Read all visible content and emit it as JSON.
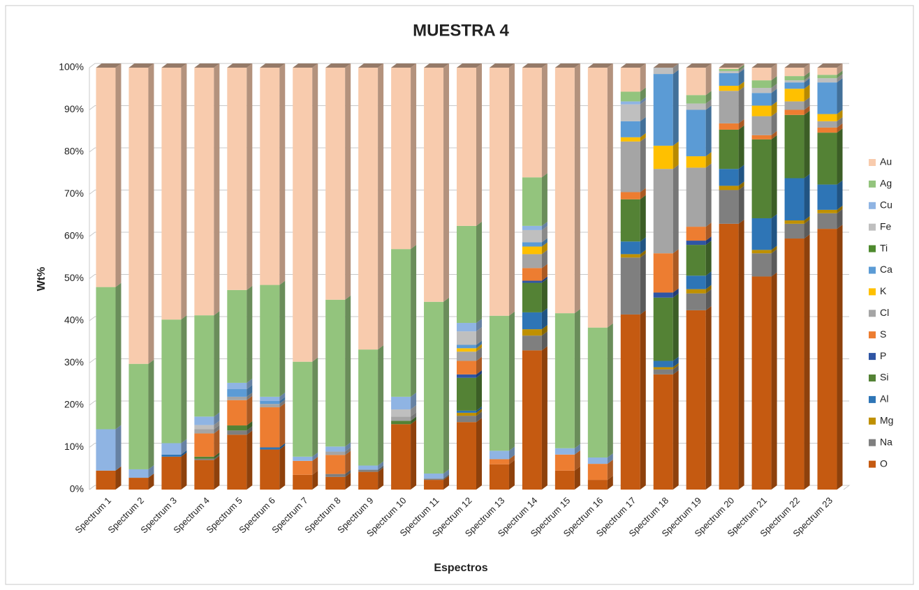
{
  "chart_data": {
    "type": "bar",
    "stacked": true,
    "title": "MUESTRA 4",
    "xlabel": "Espectros",
    "ylabel": "Wt%",
    "categories": [
      "Spectrum 1",
      "Spectrum 2",
      "Spectrum 3",
      "Spectrum 4",
      "Spectrum 5",
      "Spectrum 6",
      "Spectrum 7",
      "Spectrum 8",
      "Spectrum 9",
      "Spectrum 10",
      "Spectrum 11",
      "Spectrum 12",
      "Spectrum 13",
      "Spectrum 14",
      "Spectrum 15",
      "Spectrum 16",
      "Spectrum 17",
      "Spectrum 18",
      "Spectrum 19",
      "Spectrum 20",
      "Spectrum 21",
      "Spectrum 22",
      "Spectrum 23"
    ],
    "series": [
      {
        "name": "O",
        "color": "#c55a11",
        "values": [
          4.5,
          2.8,
          7.8,
          7,
          13,
          9.5,
          3.5,
          3,
          4.2,
          15.5,
          2.3,
          16,
          6,
          33,
          4.5,
          2.3,
          41.5,
          27.3,
          42.5,
          63,
          50.5,
          59.5,
          61.8
        ]
      },
      {
        "name": "Na",
        "color": "#7f7f7f",
        "values": [
          0,
          0,
          0,
          0.3,
          1,
          0,
          0,
          0.7,
          0.5,
          0,
          0.3,
          1.5,
          0,
          3.5,
          0,
          0,
          13.5,
          1.2,
          4,
          8,
          5.5,
          3.5,
          3.7
        ]
      },
      {
        "name": "Mg",
        "color": "#bf9000",
        "values": [
          0,
          0,
          0,
          0,
          0,
          0,
          0,
          0,
          0,
          0,
          0,
          0.7,
          0,
          1.5,
          0,
          0,
          0.8,
          0.5,
          1,
          1,
          0.8,
          0.8,
          0.8
        ]
      },
      {
        "name": "Al",
        "color": "#2e75b6",
        "values": [
          0,
          0,
          0.5,
          0,
          0,
          0.5,
          0,
          0,
          0,
          0,
          0,
          0.5,
          0,
          4,
          0,
          0,
          3,
          1.5,
          3.2,
          4,
          7.5,
          10,
          6
        ]
      },
      {
        "name": "Si",
        "color": "#548235",
        "values": [
          0,
          0,
          0,
          0.5,
          1.2,
          0,
          0,
          0,
          0,
          0.8,
          0,
          7.8,
          0,
          7,
          0,
          0,
          10,
          15,
          7.3,
          9.3,
          18.7,
          15,
          12.3
        ]
      },
      {
        "name": "P",
        "color": "#2f55a4",
        "values": [
          0,
          0,
          0,
          0,
          0,
          0,
          0,
          0,
          0,
          0,
          0,
          0.8,
          0,
          0.5,
          0,
          0,
          0,
          1.2,
          1,
          0,
          0,
          0,
          0
        ]
      },
      {
        "name": "S",
        "color": "#ed7d31",
        "values": [
          0,
          0,
          0,
          5.5,
          6,
          9.5,
          3.3,
          4.5,
          0,
          0,
          0,
          3.2,
          1.2,
          3,
          3.8,
          3.8,
          1.7,
          9.3,
          3.3,
          1.5,
          1,
          1.2,
          1.2
        ]
      },
      {
        "name": "Cl",
        "color": "#a5a5a5",
        "values": [
          0,
          0,
          0,
          1,
          0.8,
          0.8,
          0,
          0.8,
          0,
          1,
          0,
          2.2,
          0,
          3.3,
          0,
          0,
          12,
          20,
          14,
          7.7,
          4.5,
          2,
          1.5
        ]
      },
      {
        "name": "K",
        "color": "#ffc000",
        "values": [
          0,
          0,
          0,
          0,
          0,
          0,
          0,
          0,
          0,
          0,
          0,
          0.8,
          0,
          1.8,
          0,
          0,
          1,
          5.5,
          2.7,
          1.2,
          2.5,
          3,
          1.7
        ]
      },
      {
        "name": "Ca",
        "color": "#5b9bd5",
        "values": [
          0,
          0,
          0,
          0,
          1.8,
          0.7,
          0,
          0,
          0,
          0,
          0,
          0.8,
          0,
          1,
          0,
          0,
          3.8,
          17,
          11,
          3,
          3,
          1.5,
          7.5
        ]
      },
      {
        "name": "Ti",
        "color": "#4e8a2e",
        "values": [
          0,
          0,
          0,
          0,
          0,
          0,
          0,
          0,
          0,
          0,
          0,
          0,
          0,
          0,
          0,
          0,
          0,
          0,
          0,
          0,
          0,
          0,
          0
        ]
      },
      {
        "name": "Fe",
        "color": "#bfbfbf",
        "values": [
          0,
          0,
          0,
          1,
          0,
          0,
          0,
          0,
          0,
          1.7,
          0,
          3.2,
          0,
          2.9,
          0,
          0,
          4,
          1.5,
          1.5,
          0.5,
          1.2,
          0.5,
          1
        ]
      },
      {
        "name": "Cu",
        "color": "#8fb4e3",
        "values": [
          9.8,
          2,
          2.7,
          2,
          1.5,
          1,
          1,
          1.2,
          1,
          3,
          1.2,
          2,
          2,
          1,
          1.5,
          1.5,
          0.7,
          0,
          0,
          0,
          0,
          0,
          0
        ]
      },
      {
        "name": "Ag",
        "color": "#93c47d",
        "values": [
          33.7,
          25,
          29.3,
          24,
          22,
          26.5,
          22.5,
          34.8,
          27.5,
          35,
          40.7,
          23,
          32,
          11.5,
          32,
          30.8,
          2.3,
          0,
          2,
          0.5,
          1.8,
          1,
          0.8
        ]
      },
      {
        "name": "Au",
        "color": "#f8cbad",
        "values": [
          52,
          70.2,
          59.7,
          58.7,
          52.7,
          51.5,
          69.7,
          55,
          66.8,
          43,
          55.5,
          37.5,
          58.8,
          26,
          58.2,
          61.6,
          5.7,
          0,
          6.5,
          0.3,
          3,
          2,
          1.7
        ]
      }
    ],
    "ylim": [
      0,
      100
    ],
    "yticks": [
      {
        "value": 0,
        "label": "0%"
      },
      {
        "value": 10,
        "label": "10%"
      },
      {
        "value": 20,
        "label": "20%"
      },
      {
        "value": 30,
        "label": "30%"
      },
      {
        "value": 40,
        "label": "40%"
      },
      {
        "value": 50,
        "label": "50%"
      },
      {
        "value": 60,
        "label": "60%"
      },
      {
        "value": 70,
        "label": "70%"
      },
      {
        "value": 80,
        "label": "80%"
      },
      {
        "value": 90,
        "label": "90%"
      },
      {
        "value": 100,
        "label": "100%"
      }
    ],
    "grid": true,
    "legend": "right"
  }
}
